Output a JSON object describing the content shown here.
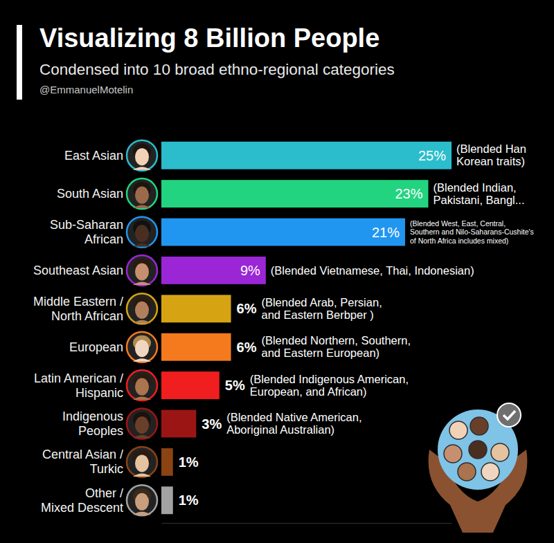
{
  "chart_data": {
    "type": "bar",
    "orientation": "horizontal",
    "title": "Visualizing 8 Billion People",
    "subtitle": "Condensed into 10 broad ethno-regional categories",
    "credit": "@EmmanuelMotelin",
    "categories": [
      "East Asian",
      "South Asian",
      "Sub-Saharan\nAfrican",
      "Southeast Asian",
      "Middle Eastern /\nNorth African",
      "European",
      "Latin American /\nHispanic",
      "Indigenous\nPeoples",
      "Central Asian /\nTurkic",
      "Other /\nMixed Descent"
    ],
    "values": [
      25,
      23,
      21,
      9,
      6,
      6,
      5,
      3,
      1,
      1
    ],
    "value_labels": [
      "25%",
      "23%",
      "21%",
      "9%",
      "6%",
      "6%",
      "5%",
      "3%",
      "1%",
      "1%"
    ],
    "colors": [
      "#2bbdcc",
      "#22d47f",
      "#2196f0",
      "#9a26d6",
      "#d6a413",
      "#f57a1e",
      "#f01e1e",
      "#9c1515",
      "#8a4313",
      "#a3a3a3"
    ],
    "annotations": [
      "(Blended Han\nKorean traits)",
      "(Blended Indian,\nPakistani, Bangl...",
      "(Blended West, East, Central,\nSouthern and Nilo-Saharans-Cushite's\nof North Africa includes mixed)",
      "(Blended Vietnamese, Thai, Indonesian)",
      "(Blended Arab, Persian,\nand Eastern Berbper )",
      "(Blended Northern, Southern,\nand Eastern European)",
      "(Blended Indigenous American,\nEuropean, and African)",
      "(Blended Native American,\nAboriginal Australian)",
      null,
      null
    ],
    "xlim": [
      0,
      25
    ],
    "tick_labels": false,
    "grid": false,
    "data_labels": true
  }
}
